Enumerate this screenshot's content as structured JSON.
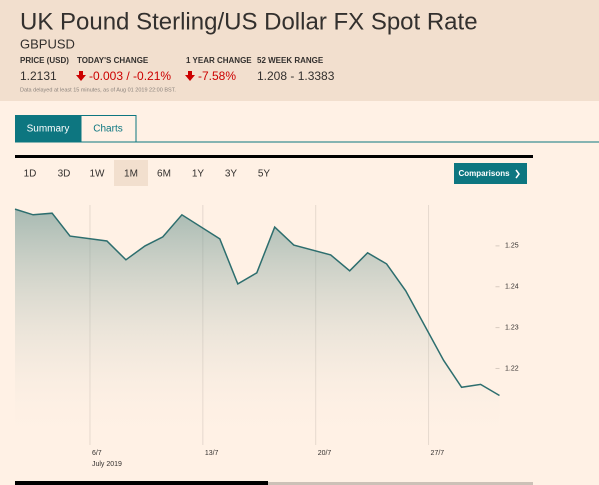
{
  "header": {
    "title": "UK Pound Sterling/US Dollar FX Spot Rate",
    "symbol": "GBPUSD",
    "stats": [
      {
        "label": "PRICE (USD)",
        "value": "1.2131"
      },
      {
        "label": "TODAY'S CHANGE",
        "value": "-0.003 / -0.21%"
      },
      {
        "label": "1 YEAR CHANGE",
        "value": "-7.58%"
      },
      {
        "label": "52 WEEK RANGE",
        "value": "1.208 - 1.3383"
      }
    ],
    "note": "Data delayed at least 15 minutes, as of Aug 01 2019 22:00 BST."
  },
  "tabs": [
    "Summary",
    "Charts"
  ],
  "ranges": [
    "1D",
    "3D",
    "1W",
    "1M",
    "6M",
    "1Y",
    "3Y",
    "5Y"
  ],
  "comparisons": "Comparisons",
  "chart_data": {
    "type": "area",
    "x": [
      1.35,
      2.47,
      3.65,
      4.76,
      7.05,
      8.23,
      9.41,
      10.52,
      11.7,
      14.05,
      15.17,
      16.35,
      17.46,
      18.64,
      20.93,
      22.11,
      23.22,
      24.4,
      25.58,
      27.93,
      29.05,
      30.23,
      31.4
    ],
    "values": [
      1.259,
      1.2576,
      1.258,
      1.2524,
      1.2512,
      1.2466,
      1.25,
      1.2522,
      1.2576,
      1.2517,
      1.2407,
      1.2434,
      1.2546,
      1.2502,
      1.2478,
      1.2439,
      1.2483,
      1.2456,
      1.239,
      1.222,
      1.2154,
      1.2161,
      1.2134
    ],
    "color": "#2d6e6e",
    "xlim": [
      1.35,
      31.4
    ],
    "xticks": [
      {
        "value": 6,
        "label": "6/7"
      },
      {
        "value": 13,
        "label": "13/7"
      },
      {
        "value": 20,
        "label": "20/7"
      },
      {
        "value": 27,
        "label": "27/7"
      }
    ],
    "x_sublabel": "July 2019",
    "ylim": [
      1.2025,
      1.26
    ],
    "yticks": [
      1.22,
      1.23,
      1.24,
      1.25
    ]
  }
}
